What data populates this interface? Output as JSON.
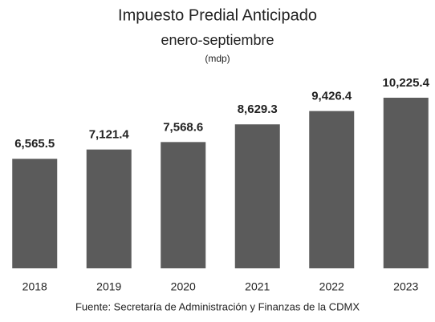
{
  "chart_data": {
    "type": "bar",
    "title": "Impuesto Predial Anticipado",
    "subtitle": "enero-septiembre",
    "unit": "(mdp)",
    "source": "Fuente: Secretaría de Administración y Finanzas de la CDMX",
    "categories": [
      "2018",
      "2019",
      "2020",
      "2021",
      "2022",
      "2023"
    ],
    "values": [
      6565.5,
      7121.4,
      7568.6,
      8629.3,
      9426.4,
      10225.4
    ],
    "value_labels": [
      "6,565.5",
      "7,121.4",
      "7,568.6",
      "8,629.3",
      "9,426.4",
      "10,225.4"
    ],
    "color": "#5b5b5b"
  }
}
